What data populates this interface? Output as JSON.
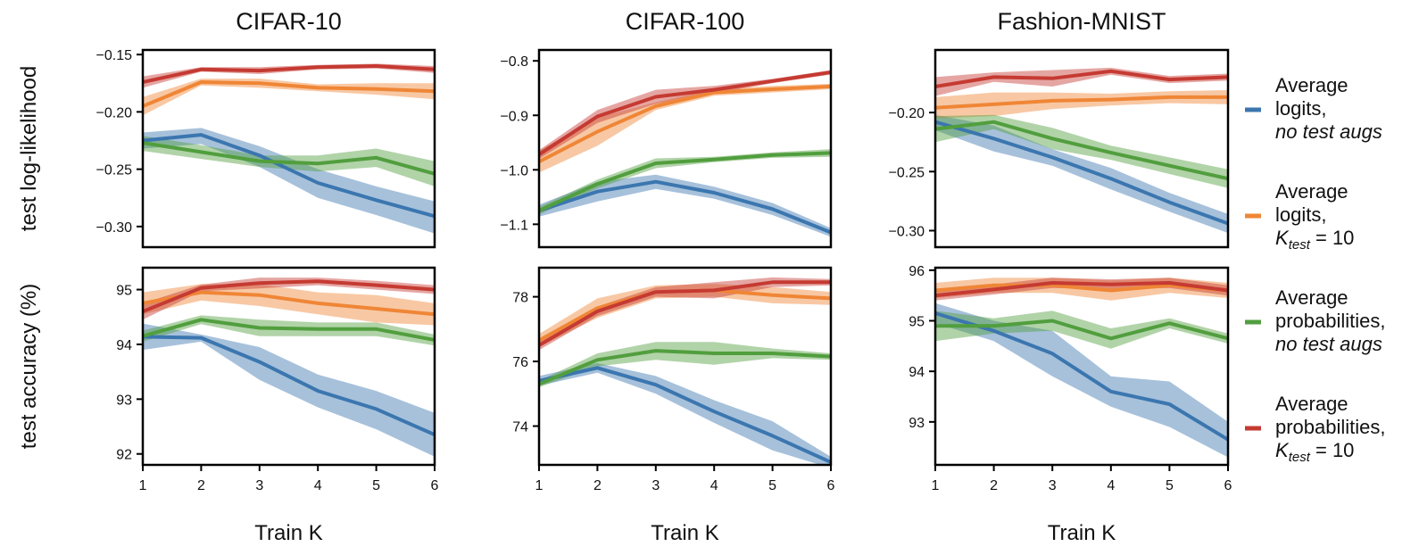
{
  "colors": {
    "logits_no_aug": "#3b76af",
    "logits_k10": "#ef8636",
    "probs_no_aug": "#519e3e",
    "probs_k10": "#c53a32"
  },
  "legend": [
    {
      "key": "logits_no_aug",
      "line1": "Average",
      "line2": "logits,",
      "line3_italic": "no test augs",
      "line3_normal": ""
    },
    {
      "key": "logits_k10",
      "line1": "Average",
      "line2": "logits,",
      "line3_italic": "K",
      "line3_sub": "test",
      "line3_normal": " = 10"
    },
    {
      "key": "probs_no_aug",
      "line1": "Average",
      "line2": "probabilities,",
      "line3_italic": "no test augs",
      "line3_normal": ""
    },
    {
      "key": "probs_k10",
      "line1": "Average",
      "line2": "probabilities,",
      "line3_italic": "K",
      "line3_sub": "test",
      "line3_normal": " = 10"
    }
  ],
  "chart_data": [
    {
      "type": "line",
      "title": "CIFAR-10",
      "xlabel": "",
      "ylabel": "test log-likelihood",
      "x": [
        1,
        2,
        3,
        4,
        5,
        6
      ],
      "xlim": [
        1,
        6
      ],
      "ylim": [
        -0.318,
        -0.146
      ],
      "yticks": [
        -0.15,
        -0.2,
        -0.25,
        -0.3
      ],
      "yticklabels": [
        "−0.15",
        "−0.20",
        "−0.25",
        "−0.30"
      ],
      "series": [
        {
          "key": "logits_no_aug",
          "values": [
            -0.225,
            -0.22,
            -0.238,
            -0.262,
            -0.277,
            -0.291
          ],
          "lower": [
            -0.232,
            -0.228,
            -0.248,
            -0.275,
            -0.29,
            -0.306
          ],
          "upper": [
            -0.218,
            -0.214,
            -0.23,
            -0.25,
            -0.265,
            -0.278
          ]
        },
        {
          "key": "logits_k10",
          "values": [
            -0.195,
            -0.174,
            -0.175,
            -0.179,
            -0.18,
            -0.182
          ],
          "lower": [
            -0.203,
            -0.177,
            -0.179,
            -0.182,
            -0.185,
            -0.189
          ],
          "upper": [
            -0.187,
            -0.171,
            -0.171,
            -0.176,
            -0.175,
            -0.175
          ]
        },
        {
          "key": "probs_no_aug",
          "values": [
            -0.227,
            -0.235,
            -0.243,
            -0.245,
            -0.24,
            -0.254
          ],
          "lower": [
            -0.234,
            -0.241,
            -0.248,
            -0.252,
            -0.248,
            -0.265
          ],
          "upper": [
            -0.221,
            -0.229,
            -0.238,
            -0.238,
            -0.232,
            -0.243
          ]
        },
        {
          "key": "probs_k10",
          "values": [
            -0.174,
            -0.163,
            -0.164,
            -0.161,
            -0.16,
            -0.163
          ],
          "lower": [
            -0.179,
            -0.165,
            -0.167,
            -0.163,
            -0.162,
            -0.166
          ],
          "upper": [
            -0.169,
            -0.161,
            -0.161,
            -0.159,
            -0.158,
            -0.16
          ]
        }
      ]
    },
    {
      "type": "line",
      "title": "CIFAR-100",
      "xlabel": "",
      "ylabel": "",
      "x": [
        1,
        2,
        3,
        4,
        5,
        6
      ],
      "xlim": [
        1,
        6
      ],
      "ylim": [
        -1.142,
        -0.78
      ],
      "yticks": [
        -0.8,
        -0.9,
        -1.0,
        -1.1
      ],
      "yticklabels": [
        "−0.8",
        "−0.9",
        "−1.0",
        "−1.1"
      ],
      "series": [
        {
          "key": "logits_no_aug",
          "values": [
            -1.075,
            -1.04,
            -1.022,
            -1.042,
            -1.072,
            -1.115
          ],
          "lower": [
            -1.086,
            -1.058,
            -1.035,
            -1.053,
            -1.083,
            -1.123
          ],
          "upper": [
            -1.064,
            -1.022,
            -1.009,
            -1.031,
            -1.061,
            -1.107
          ]
        },
        {
          "key": "logits_k10",
          "values": [
            -0.985,
            -0.93,
            -0.883,
            -0.858,
            -0.852,
            -0.847
          ],
          "lower": [
            -1.005,
            -0.956,
            -0.89,
            -0.864,
            -0.858,
            -0.852
          ],
          "upper": [
            -0.965,
            -0.904,
            -0.876,
            -0.852,
            -0.846,
            -0.842
          ]
        },
        {
          "key": "probs_no_aug",
          "values": [
            -1.075,
            -1.026,
            -0.988,
            -0.981,
            -0.973,
            -0.969
          ],
          "lower": [
            -1.082,
            -1.034,
            -0.997,
            -0.986,
            -0.978,
            -0.976
          ],
          "upper": [
            -1.068,
            -1.018,
            -0.979,
            -0.976,
            -0.968,
            -0.962
          ]
        },
        {
          "key": "probs_k10",
          "values": [
            -0.972,
            -0.902,
            -0.866,
            -0.853,
            -0.837,
            -0.821
          ],
          "lower": [
            -0.98,
            -0.914,
            -0.879,
            -0.86,
            -0.841,
            -0.825
          ],
          "upper": [
            -0.964,
            -0.89,
            -0.853,
            -0.846,
            -0.833,
            -0.817
          ]
        }
      ]
    },
    {
      "type": "line",
      "title": "Fashion-MNIST",
      "xlabel": "",
      "ylabel": "",
      "x": [
        1,
        2,
        3,
        4,
        5,
        6
      ],
      "xlim": [
        1,
        6
      ],
      "ylim": [
        -0.314,
        -0.147
      ],
      "yticks": [
        -0.2,
        -0.25,
        -0.3
      ],
      "yticklabels": [
        "−0.20",
        "−0.25",
        "−0.30"
      ],
      "series": [
        {
          "key": "logits_no_aug",
          "values": [
            -0.208,
            -0.222,
            -0.238,
            -0.256,
            -0.276,
            -0.294
          ],
          "lower": [
            -0.215,
            -0.233,
            -0.245,
            -0.265,
            -0.284,
            -0.302
          ],
          "upper": [
            -0.202,
            -0.211,
            -0.231,
            -0.247,
            -0.268,
            -0.286
          ]
        },
        {
          "key": "logits_k10",
          "values": [
            -0.196,
            -0.193,
            -0.19,
            -0.189,
            -0.187,
            -0.187
          ],
          "lower": [
            -0.205,
            -0.203,
            -0.197,
            -0.194,
            -0.192,
            -0.193
          ],
          "upper": [
            -0.187,
            -0.183,
            -0.183,
            -0.184,
            -0.182,
            -0.181
          ]
        },
        {
          "key": "probs_no_aug",
          "values": [
            -0.214,
            -0.208,
            -0.222,
            -0.234,
            -0.245,
            -0.256
          ],
          "lower": [
            -0.225,
            -0.214,
            -0.231,
            -0.24,
            -0.252,
            -0.264
          ],
          "upper": [
            -0.203,
            -0.202,
            -0.213,
            -0.228,
            -0.238,
            -0.248
          ]
        },
        {
          "key": "probs_k10",
          "values": [
            -0.178,
            -0.17,
            -0.171,
            -0.165,
            -0.172,
            -0.17
          ],
          "lower": [
            -0.186,
            -0.174,
            -0.178,
            -0.168,
            -0.175,
            -0.173
          ],
          "upper": [
            -0.17,
            -0.166,
            -0.164,
            -0.162,
            -0.169,
            -0.167
          ]
        }
      ]
    },
    {
      "type": "line",
      "title": "",
      "xlabel": "Train K",
      "ylabel": "test accuracy (%)",
      "x": [
        1,
        2,
        3,
        4,
        5,
        6
      ],
      "xlim": [
        1,
        6
      ],
      "xticks": [
        1,
        2,
        3,
        4,
        5,
        6
      ],
      "ylim": [
        91.8,
        95.4
      ],
      "yticks": [
        92,
        93,
        94,
        95
      ],
      "yticklabels": [
        "92",
        "93",
        "94",
        "95"
      ],
      "series": [
        {
          "key": "logits_no_aug",
          "values": [
            94.14,
            94.12,
            93.68,
            93.15,
            92.82,
            92.35
          ],
          "lower": [
            93.9,
            94.05,
            93.35,
            92.85,
            92.45,
            91.95
          ],
          "upper": [
            94.38,
            94.18,
            93.95,
            93.45,
            93.15,
            92.75
          ]
        },
        {
          "key": "logits_k10",
          "values": [
            94.75,
            94.95,
            94.9,
            94.75,
            94.65,
            94.55
          ],
          "lower": [
            94.55,
            94.8,
            94.7,
            94.55,
            94.4,
            94.35
          ],
          "upper": [
            94.95,
            95.1,
            95.1,
            94.95,
            94.9,
            94.75
          ]
        },
        {
          "key": "probs_no_aug",
          "values": [
            94.15,
            94.45,
            94.3,
            94.28,
            94.28,
            94.08
          ],
          "lower": [
            94.05,
            94.37,
            94.15,
            94.15,
            94.15,
            93.98
          ],
          "upper": [
            94.25,
            94.53,
            94.45,
            94.4,
            94.4,
            94.18
          ]
        },
        {
          "key": "probs_k10",
          "values": [
            94.6,
            95.03,
            95.12,
            95.15,
            95.08,
            95.0
          ],
          "lower": [
            94.45,
            94.97,
            95.02,
            95.08,
            95.0,
            94.92
          ],
          "upper": [
            94.75,
            95.09,
            95.22,
            95.22,
            95.16,
            95.08
          ]
        }
      ]
    },
    {
      "type": "line",
      "title": "",
      "xlabel": "Train K",
      "ylabel": "",
      "x": [
        1,
        2,
        3,
        4,
        5,
        6
      ],
      "xlim": [
        1,
        6
      ],
      "xticks": [
        1,
        2,
        3,
        4,
        5,
        6
      ],
      "ylim": [
        72.8,
        78.9
      ],
      "yticks": [
        74,
        76,
        78
      ],
      "yticklabels": [
        "74",
        "76",
        "78"
      ],
      "series": [
        {
          "key": "logits_no_aug",
          "values": [
            75.4,
            75.8,
            75.28,
            74.45,
            73.7,
            72.88
          ],
          "lower": [
            75.25,
            75.65,
            75.0,
            74.1,
            73.25,
            72.7
          ],
          "upper": [
            75.55,
            75.95,
            75.55,
            74.8,
            74.15,
            73.05
          ]
        },
        {
          "key": "logits_k10",
          "values": [
            76.65,
            77.65,
            78.15,
            78.2,
            78.05,
            77.95
          ],
          "lower": [
            76.45,
            77.35,
            77.95,
            78.0,
            77.8,
            77.75
          ],
          "upper": [
            76.85,
            77.95,
            78.35,
            78.4,
            78.3,
            78.15
          ]
        },
        {
          "key": "probs_no_aug",
          "values": [
            75.3,
            76.05,
            76.33,
            76.25,
            76.25,
            76.15
          ],
          "lower": [
            75.2,
            75.85,
            76.05,
            75.9,
            76.1,
            76.05
          ],
          "upper": [
            75.4,
            76.25,
            76.6,
            76.6,
            76.4,
            76.25
          ]
        },
        {
          "key": "probs_k10",
          "values": [
            76.5,
            77.55,
            78.15,
            78.2,
            78.45,
            78.45
          ],
          "lower": [
            76.35,
            77.4,
            78.0,
            77.95,
            78.3,
            78.35
          ],
          "upper": [
            76.65,
            77.7,
            78.3,
            78.45,
            78.6,
            78.55
          ]
        }
      ]
    },
    {
      "type": "line",
      "title": "",
      "xlabel": "Train K",
      "ylabel": "",
      "x": [
        1,
        2,
        3,
        4,
        5,
        6
      ],
      "xlim": [
        1,
        6
      ],
      "xticks": [
        1,
        2,
        3,
        4,
        5,
        6
      ],
      "ylim": [
        92.15,
        96.05
      ],
      "yticks": [
        93,
        94,
        95,
        96
      ],
      "yticklabels": [
        "93",
        "94",
        "95",
        "96"
      ],
      "series": [
        {
          "key": "logits_no_aug",
          "values": [
            95.15,
            94.8,
            94.35,
            93.6,
            93.35,
            92.65
          ],
          "lower": [
            94.95,
            94.6,
            93.9,
            93.3,
            92.9,
            92.3
          ],
          "upper": [
            95.35,
            95.0,
            94.8,
            93.9,
            93.8,
            93.0
          ]
        },
        {
          "key": "logits_k10",
          "values": [
            95.6,
            95.7,
            95.7,
            95.6,
            95.7,
            95.6
          ],
          "lower": [
            95.45,
            95.55,
            95.55,
            95.4,
            95.55,
            95.45
          ],
          "upper": [
            95.75,
            95.85,
            95.85,
            95.8,
            95.85,
            95.75
          ]
        },
        {
          "key": "probs_no_aug",
          "values": [
            94.9,
            94.9,
            95.0,
            94.65,
            94.95,
            94.65
          ],
          "lower": [
            94.6,
            94.75,
            94.8,
            94.45,
            94.85,
            94.55
          ],
          "upper": [
            95.2,
            95.05,
            95.2,
            94.85,
            95.05,
            94.75
          ]
        },
        {
          "key": "probs_k10",
          "values": [
            95.5,
            95.62,
            95.75,
            95.72,
            95.75,
            95.6
          ],
          "lower": [
            95.4,
            95.52,
            95.65,
            95.62,
            95.65,
            95.5
          ],
          "upper": [
            95.6,
            95.72,
            95.85,
            95.82,
            95.85,
            95.7
          ]
        }
      ]
    }
  ]
}
